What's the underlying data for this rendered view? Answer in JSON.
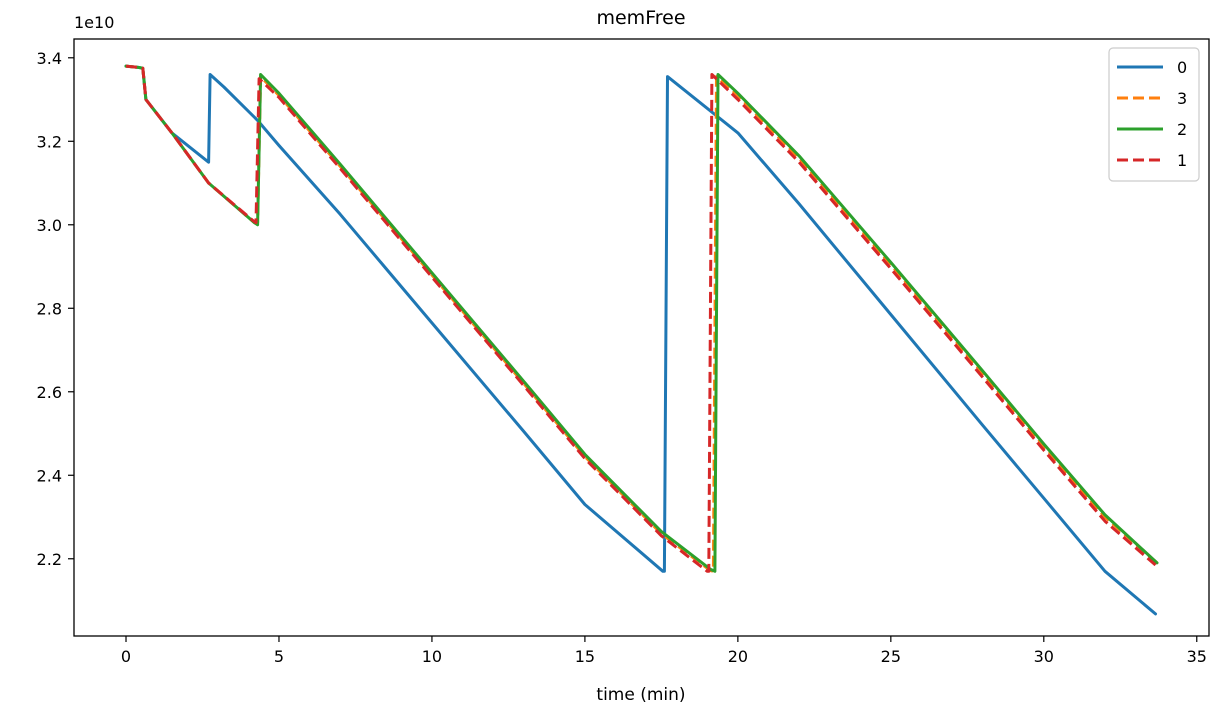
{
  "chart_data": {
    "type": "line",
    "title": "memFree",
    "xlabel": "time (min)",
    "ylabel": "",
    "y_offset_label": "1e10",
    "xlim": [
      -1.7,
      35.4
    ],
    "ylim": [
      2.015,
      3.445
    ],
    "xticks": [
      0,
      5,
      10,
      15,
      20,
      25,
      30,
      35
    ],
    "yticks": [
      2.2,
      2.4,
      2.6,
      2.8,
      3.0,
      3.2,
      3.4
    ],
    "ytick_labels": [
      "2.2",
      "2.4",
      "2.6",
      "2.8",
      "3.0",
      "3.2",
      "3.4"
    ],
    "y_unit_multiplier": 10000000000.0,
    "grid": false,
    "legend_position": "top-right",
    "series": [
      {
        "name": "0",
        "color": "#1f77b4",
        "dash": "solid",
        "x": [
          0,
          0.4,
          0.55,
          0.65,
          1.5,
          2.7,
          2.75,
          3.2,
          4.3,
          5.0,
          7.0,
          10.0,
          13.0,
          15.0,
          17.55,
          17.6,
          17.7,
          20.0,
          22.0,
          25.0,
          28.0,
          30.0,
          32.0,
          33.65
        ],
        "y": [
          3.38,
          3.377,
          3.375,
          3.3,
          3.22,
          3.15,
          3.36,
          3.33,
          3.25,
          3.19,
          3.025,
          2.765,
          2.505,
          2.33,
          2.17,
          2.17,
          3.355,
          3.22,
          3.05,
          2.785,
          2.52,
          2.345,
          2.17,
          2.068
        ]
      },
      {
        "name": "3",
        "color": "#ff7f0e",
        "dash": "dashed",
        "x": [
          0,
          0.4,
          0.55,
          0.65,
          1.5,
          2.7,
          4.2,
          4.3,
          4.4,
          5.0,
          7.0,
          10.0,
          13.0,
          15.0,
          17.5,
          19.1,
          19.2,
          19.3,
          20.0,
          22.0,
          25.0,
          28.0,
          30.0,
          32.0,
          33.7
        ],
        "y": [
          3.38,
          3.377,
          3.375,
          3.3,
          3.22,
          3.1,
          3.005,
          3.005,
          3.355,
          3.31,
          3.14,
          2.88,
          2.62,
          2.445,
          2.26,
          2.172,
          2.17,
          3.355,
          3.31,
          3.16,
          2.905,
          2.645,
          2.47,
          2.3,
          2.19
        ]
      },
      {
        "name": "2",
        "color": "#2ca02c",
        "dash": "solid",
        "x": [
          0,
          0.4,
          0.55,
          0.65,
          1.5,
          2.7,
          4.2,
          4.3,
          4.4,
          5.0,
          7.0,
          10.0,
          13.0,
          15.0,
          17.5,
          19.1,
          19.25,
          19.35,
          20.0,
          22.0,
          25.0,
          28.0,
          30.0,
          32.0,
          33.7
        ],
        "y": [
          3.38,
          3.377,
          3.375,
          3.3,
          3.22,
          3.1,
          3.005,
          3.0,
          3.36,
          3.315,
          3.145,
          2.885,
          2.625,
          2.45,
          2.265,
          2.175,
          2.17,
          3.36,
          3.315,
          3.165,
          2.91,
          2.65,
          2.475,
          2.305,
          2.19
        ]
      },
      {
        "name": "1",
        "color": "#d62728",
        "dash": "dashed",
        "x": [
          0,
          0.4,
          0.55,
          0.65,
          1.5,
          2.7,
          4.15,
          4.25,
          4.35,
          5.0,
          7.0,
          10.0,
          13.0,
          15.0,
          17.5,
          19.0,
          19.05,
          19.15,
          20.0,
          22.0,
          25.0,
          28.0,
          30.0,
          32.0,
          33.65
        ],
        "y": [
          3.38,
          3.377,
          3.375,
          3.3,
          3.22,
          3.1,
          3.01,
          3.005,
          3.35,
          3.305,
          3.135,
          2.875,
          2.615,
          2.44,
          2.255,
          2.17,
          2.17,
          3.36,
          3.3,
          3.15,
          2.895,
          2.635,
          2.46,
          2.29,
          2.185
        ]
      }
    ]
  }
}
